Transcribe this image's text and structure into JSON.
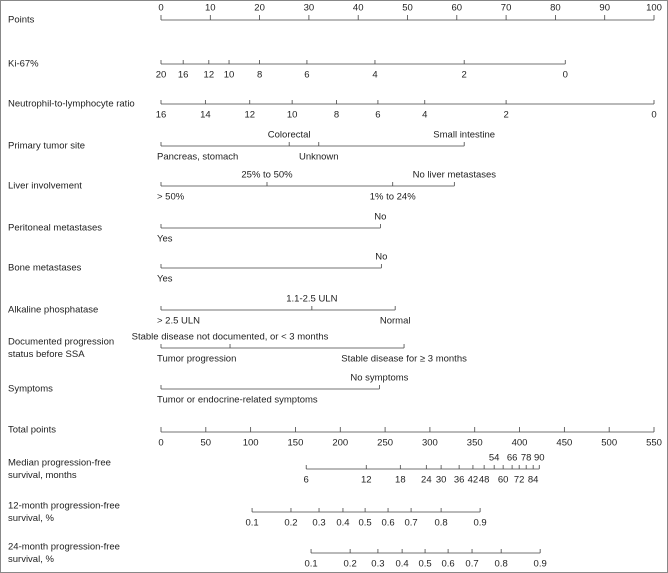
{
  "chart_data": {
    "type": "nomogram",
    "points_axis": {
      "name": "Points",
      "xlim": [
        0,
        100
      ],
      "xticks": [
        0,
        10,
        20,
        30,
        40,
        50,
        60,
        70,
        80,
        90,
        100
      ]
    },
    "total_axis": {
      "name": "Total points",
      "xlim": [
        0,
        550
      ],
      "xticks": [
        0,
        50,
        100,
        150,
        200,
        250,
        300,
        350,
        400,
        450,
        500,
        550
      ]
    },
    "rows": [
      {
        "name": [
          "Ki-67%"
        ],
        "scale": "points",
        "ticks": [
          {
            "value": 20,
            "points": 0
          },
          {
            "value": 16,
            "points": 4.5
          },
          {
            "value": 12,
            "points": 9.7
          },
          {
            "value": 10,
            "points": 13.8
          },
          {
            "value": 8,
            "points": 20
          },
          {
            "value": 6,
            "points": 29.6
          },
          {
            "value": 4,
            "points": 43.4
          },
          {
            "value": 2,
            "points": 61.5
          },
          {
            "value": 0,
            "points": 82
          }
        ]
      },
      {
        "name": [
          "Neutrophil-to-lymphocyte ratio"
        ],
        "scale": "points",
        "ticks": [
          {
            "value": 16,
            "points": 0
          },
          {
            "value": 14,
            "points": 9
          },
          {
            "value": 12,
            "points": 18
          },
          {
            "value": 10,
            "points": 26.6
          },
          {
            "value": 8,
            "points": 35.6
          },
          {
            "value": 6,
            "points": 44
          },
          {
            "value": 4,
            "points": 53.5
          },
          {
            "value": 2,
            "points": 70
          },
          {
            "value": 0,
            "points": 100
          }
        ]
      },
      {
        "name": [
          "Primary tumor site"
        ],
        "scale": "points",
        "ticks": [
          {
            "label": "Pancreas, stomach",
            "points": 0
          },
          {
            "label": "Colorectal",
            "points": 26,
            "side": "above"
          },
          {
            "label": "Unknown",
            "points": 32
          },
          {
            "label": "Small intestine",
            "points": 61.5,
            "side": "above"
          }
        ]
      },
      {
        "name": [
          "Liver involvement"
        ],
        "scale": "points",
        "ticks": [
          {
            "label": "> 50%",
            "points": 0
          },
          {
            "label": "25% to 50%",
            "points": 21.5,
            "side": "above"
          },
          {
            "label": "1% to 24%",
            "points": 47
          },
          {
            "label": "No liver metastases",
            "points": 59.5,
            "side": "above"
          }
        ]
      },
      {
        "name": [
          "Peritoneal metastases"
        ],
        "scale": "points",
        "ticks": [
          {
            "label": "Yes",
            "points": 0
          },
          {
            "label": "No",
            "points": 44.5,
            "side": "above"
          }
        ]
      },
      {
        "name": [
          "Bone metastases"
        ],
        "scale": "points",
        "ticks": [
          {
            "label": "Yes",
            "points": 0
          },
          {
            "label": "No",
            "points": 44.7,
            "side": "above"
          }
        ]
      },
      {
        "name": [
          "Alkaline phosphatase"
        ],
        "scale": "points",
        "ticks": [
          {
            "label": "> 2.5 ULN",
            "points": 0
          },
          {
            "label": "1.1-2.5 ULN",
            "points": 30.6,
            "side": "above"
          },
          {
            "label": "Normal",
            "points": 47.5
          }
        ]
      },
      {
        "name": [
          "Documented progression",
          "status before SSA"
        ],
        "scale": "points",
        "ticks": [
          {
            "label": "Tumor progression",
            "points": 0
          },
          {
            "label": "Stable disease not documented, or < 3 months",
            "points": 14,
            "side": "above"
          },
          {
            "label": "Stable disease for ≥ 3 months",
            "points": 49.3
          }
        ]
      },
      {
        "name": [
          "Symptoms"
        ],
        "scale": "points",
        "ticks": [
          {
            "label": "Tumor or endocrine-related symptoms",
            "points": 0
          },
          {
            "label": "No symptoms",
            "points": 44.3,
            "side": "above"
          }
        ]
      },
      {
        "name": [
          "Median progression-free",
          "survival, months"
        ],
        "scale": "total",
        "ticks": [
          {
            "value": 6,
            "points": 162
          },
          {
            "value": 12,
            "points": 229
          },
          {
            "value": 18,
            "points": 267
          },
          {
            "value": 24,
            "points": 296
          },
          {
            "value": 30,
            "points": 312.5
          },
          {
            "value": 36,
            "points": 332.6
          },
          {
            "value": 42,
            "points": 348
          },
          {
            "value": 48,
            "points": 360.5
          },
          {
            "value": 54,
            "points": 371.7,
            "side": "above"
          },
          {
            "value": 60,
            "points": 381.7
          },
          {
            "value": 66,
            "points": 391.7,
            "side": "above"
          },
          {
            "value": 72,
            "points": 399.6
          },
          {
            "value": 78,
            "points": 407.4,
            "side": "above"
          },
          {
            "value": 84,
            "points": 415.2
          },
          {
            "value": 90,
            "points": 422,
            "side": "above"
          }
        ]
      },
      {
        "name": [
          "12-month progression-free",
          "survival, %"
        ],
        "scale": "total",
        "ticks": [
          {
            "value": 0.1,
            "points": 101.6
          },
          {
            "value": 0.2,
            "points": 145
          },
          {
            "value": 0.3,
            "points": 176.3
          },
          {
            "value": 0.4,
            "points": 203
          },
          {
            "value": 0.5,
            "points": 227.7
          },
          {
            "value": 0.6,
            "points": 253.3
          },
          {
            "value": 0.7,
            "points": 279
          },
          {
            "value": 0.8,
            "points": 312.5
          },
          {
            "value": 0.9,
            "points": 356
          }
        ]
      },
      {
        "name": [
          "24-month progression-free",
          "survival, %"
        ],
        "scale": "total",
        "ticks": [
          {
            "value": 0.1,
            "points": 167.4
          },
          {
            "value": 0.2,
            "points": 211
          },
          {
            "value": 0.3,
            "points": 242
          },
          {
            "value": 0.4,
            "points": 269
          },
          {
            "value": 0.5,
            "points": 294.6
          },
          {
            "value": 0.6,
            "points": 320.3
          },
          {
            "value": 0.7,
            "points": 347
          },
          {
            "value": 0.8,
            "points": 379.5
          },
          {
            "value": 0.9,
            "points": 423
          }
        ]
      }
    ]
  }
}
